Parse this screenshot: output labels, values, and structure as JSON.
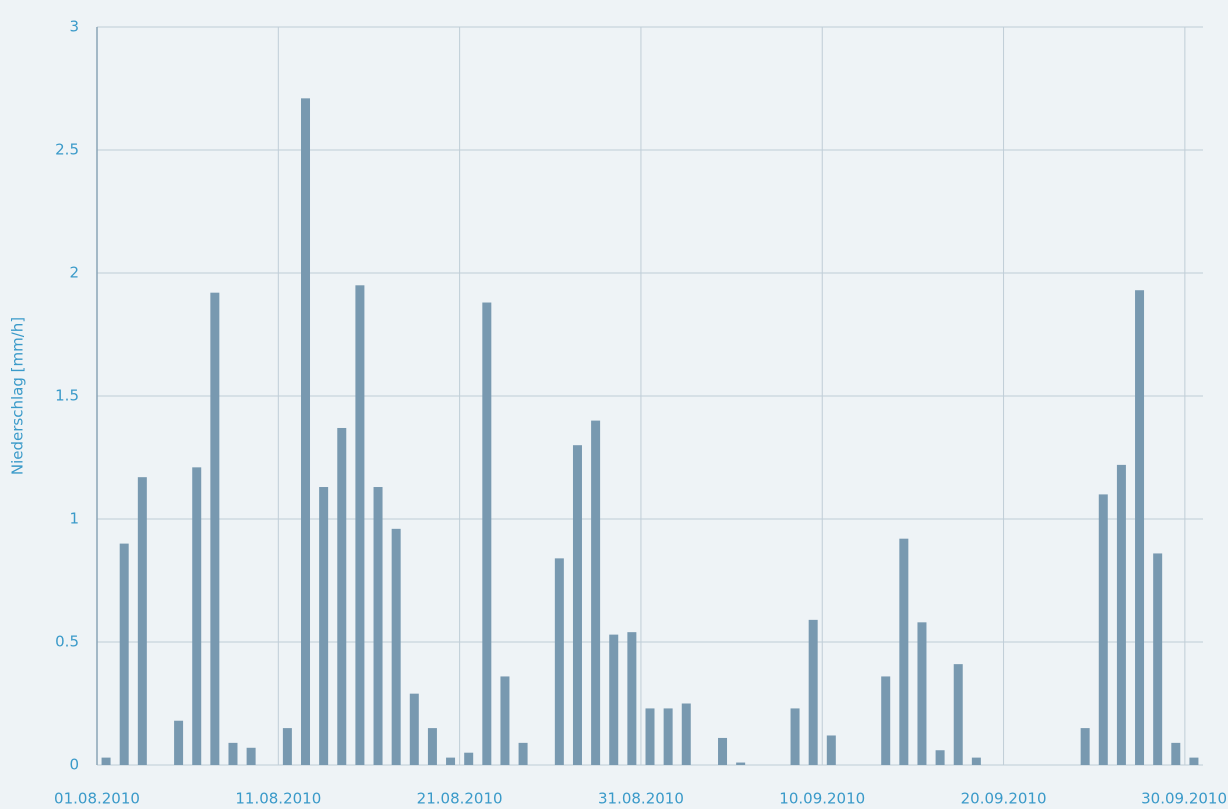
{
  "chart_data": {
    "type": "bar",
    "y_label": "Niederschlag [mm/h]",
    "categories": [
      "01.08.2010",
      null,
      null,
      null,
      null,
      null,
      null,
      null,
      null,
      null,
      "11.08.2010",
      null,
      null,
      null,
      null,
      null,
      null,
      null,
      null,
      null,
      "21.08.2010",
      null,
      null,
      null,
      null,
      null,
      null,
      null,
      null,
      null,
      "31.08.2010",
      null,
      null,
      null,
      null,
      null,
      null,
      null,
      null,
      null,
      "10.09.2010",
      null,
      null,
      null,
      null,
      null,
      null,
      null,
      null,
      null,
      "20.09.2010",
      null,
      null,
      null,
      null,
      null,
      null,
      null,
      null,
      null,
      "30.09.2010"
    ],
    "values": [
      0.03,
      0.9,
      1.17,
      0,
      0.18,
      1.21,
      1.92,
      0.09,
      0.07,
      0,
      0.15,
      2.71,
      1.13,
      1.37,
      1.95,
      1.13,
      0.96,
      0.29,
      0.15,
      0.03,
      0.05,
      1.88,
      0.36,
      0.09,
      0,
      0.84,
      1.3,
      1.4,
      0.53,
      0.54,
      0.23,
      0.23,
      0.25,
      0,
      0.11,
      0.01,
      0,
      0,
      0.23,
      0.59,
      0.12,
      0,
      0,
      0.36,
      0.92,
      0.58,
      0.06,
      0.41,
      0.03,
      0,
      0,
      0,
      0,
      0,
      0.15,
      1.1,
      1.22,
      1.93,
      0.86,
      0.09,
      0.03
    ],
    "color": "#7899b0",
    "ylim": [
      0,
      3
    ],
    "yticks": [
      0,
      0.5,
      1,
      1.5,
      2,
      2.5,
      3
    ],
    "grid": true
  }
}
